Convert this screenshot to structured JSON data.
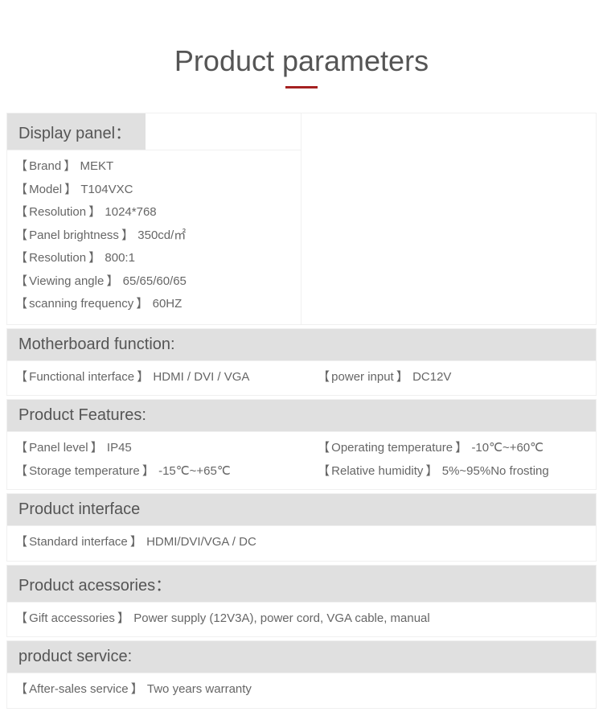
{
  "title": "Product parameters",
  "colors": {
    "heading": "#555555",
    "text": "#666666",
    "header_bg": "#e0e0e0",
    "underline": "#a52121",
    "border": "#f0f0f0",
    "background": "#ffffff"
  },
  "typography": {
    "title_fontsize": 36,
    "header_fontsize": 20,
    "body_fontsize": 15,
    "font_family": "Arial"
  },
  "sections": {
    "display_panel": {
      "header": "Display panel：",
      "items": [
        {
          "label": "Brand",
          "value": "MEKT"
        },
        {
          "label": "Model",
          "value": "T104VXC"
        },
        {
          "label": "Resolution",
          "value": "1024*768"
        },
        {
          "label": "Panel brightness",
          "value": "350cd/㎡"
        },
        {
          "label": "Resolution",
          "value": "800:1"
        },
        {
          "label": "Viewing angle",
          "value": "65/65/60/65"
        },
        {
          "label": "scanning frequency",
          "value": "60HZ"
        }
      ]
    },
    "motherboard": {
      "header": "Motherboard function:",
      "left": {
        "label": "Functional interface",
        "value": "HDMI / DVI / VGA"
      },
      "right": {
        "label": "power input",
        "value": "DC12V"
      }
    },
    "features": {
      "header": "Product Features:",
      "row1_left": {
        "label": "Panel level",
        "value": "IP45"
      },
      "row1_right": {
        "label": "Operating temperature",
        "value": "-10℃~+60℃"
      },
      "row2_left": {
        "label": "Storage temperature",
        "value": "-15℃~+65℃"
      },
      "row2_right": {
        "label": "Relative humidity",
        "value": "5%~95%No frosting"
      }
    },
    "interface": {
      "header": "Product interface",
      "item": {
        "label": "Standard interface",
        "value": "HDMI/DVI/VGA / DC"
      }
    },
    "accessories": {
      "header": "Product acessories：",
      "item": {
        "label": "Gift accessories",
        "value": "Power supply (12V3A), power cord, VGA cable, manual"
      }
    },
    "service": {
      "header": "product service:",
      "item": {
        "label": "After-sales service",
        "value": "Two years warranty"
      }
    }
  }
}
